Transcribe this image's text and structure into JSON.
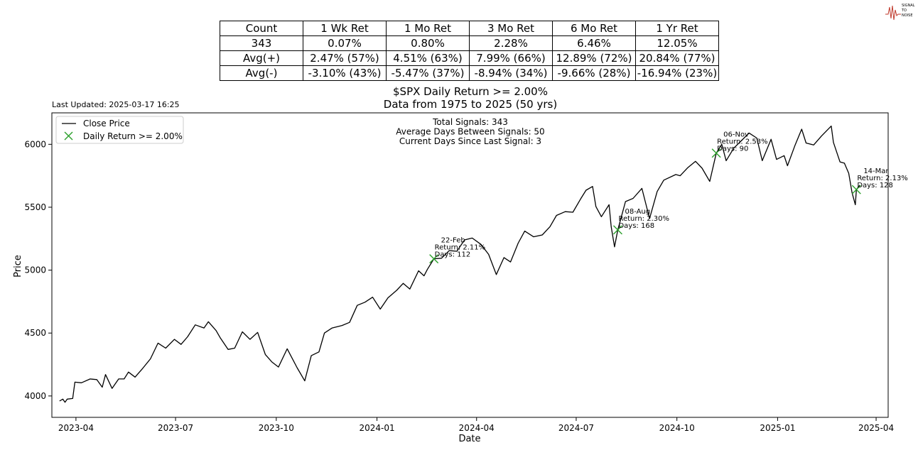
{
  "stats_table": {
    "rows": [
      [
        "Count",
        "1 Wk Ret",
        "1 Mo Ret",
        "3 Mo Ret",
        "6 Mo Ret",
        "1 Yr Ret"
      ],
      [
        "343",
        "0.07%",
        "0.80%",
        "2.28%",
        "6.46%",
        "12.05%"
      ],
      [
        "Avg(+)",
        "2.47% (57%)",
        "4.51% (63%)",
        "7.99% (66%)",
        "12.89% (72%)",
        "20.84% (77%)"
      ],
      [
        "Avg(-)",
        "-3.10% (43%)",
        "-5.47% (37%)",
        "-8.94% (34%)",
        "-9.66% (28%)",
        "-16.94% (23%)"
      ]
    ]
  },
  "logo": {
    "text_lines": [
      "SIGNAL",
      "TO",
      "NOISE"
    ],
    "color": "#c0392b"
  },
  "last_updated": "Last Updated: 2025-03-17 16:25",
  "colors": {
    "line": "#000000",
    "signal": "#2ca02c"
  },
  "chart_data": {
    "type": "line",
    "title": "$SPX Daily Return >= 2.00%",
    "subtitle": "Data from 1975 to 2025 (50 yrs)",
    "xlabel": "Date",
    "ylabel": "Price",
    "xlim": [
      "2023-03-10",
      "2025-04-12"
    ],
    "ylim": [
      3830,
      6250
    ],
    "yticks": [
      4000,
      4500,
      5000,
      5500,
      6000
    ],
    "xticks": [
      "2023-04",
      "2023-07",
      "2023-10",
      "2024-01",
      "2024-04",
      "2024-07",
      "2024-10",
      "2025-01",
      "2025-04"
    ],
    "stats_text": [
      "Total Signals: 343",
      "Average Days Between Signals: 50",
      "Current Days Since Last Signal: 3"
    ],
    "legend": {
      "placement": "top-left",
      "items": [
        "Close Price",
        "Daily Return >= 2.00%"
      ]
    },
    "series": [
      {
        "name": "Close Price",
        "points": [
          [
            "2023-03-17",
            3960
          ],
          [
            "2023-03-20",
            3975
          ],
          [
            "2023-03-22",
            3950
          ],
          [
            "2023-03-24",
            3975
          ],
          [
            "2023-03-29",
            3980
          ],
          [
            "2023-03-31",
            4110
          ],
          [
            "2023-04-06",
            4105
          ],
          [
            "2023-04-14",
            4135
          ],
          [
            "2023-04-20",
            4130
          ],
          [
            "2023-04-25",
            4070
          ],
          [
            "2023-04-28",
            4170
          ],
          [
            "2023-05-04",
            4060
          ],
          [
            "2023-05-10",
            4135
          ],
          [
            "2023-05-15",
            4135
          ],
          [
            "2023-05-19",
            4190
          ],
          [
            "2023-05-25",
            4150
          ],
          [
            "2023-06-01",
            4220
          ],
          [
            "2023-06-08",
            4295
          ],
          [
            "2023-06-15",
            4420
          ],
          [
            "2023-06-22",
            4380
          ],
          [
            "2023-06-30",
            4450
          ],
          [
            "2023-07-06",
            4410
          ],
          [
            "2023-07-12",
            4470
          ],
          [
            "2023-07-19",
            4565
          ],
          [
            "2023-07-27",
            4540
          ],
          [
            "2023-07-31",
            4590
          ],
          [
            "2023-08-07",
            4520
          ],
          [
            "2023-08-11",
            4460
          ],
          [
            "2023-08-18",
            4370
          ],
          [
            "2023-08-24",
            4380
          ],
          [
            "2023-08-31",
            4510
          ],
          [
            "2023-09-07",
            4450
          ],
          [
            "2023-09-14",
            4505
          ],
          [
            "2023-09-21",
            4330
          ],
          [
            "2023-09-27",
            4270
          ],
          [
            "2023-10-03",
            4230
          ],
          [
            "2023-10-11",
            4375
          ],
          [
            "2023-10-20",
            4225
          ],
          [
            "2023-10-27",
            4120
          ],
          [
            "2023-11-02",
            4320
          ],
          [
            "2023-11-09",
            4350
          ],
          [
            "2023-11-14",
            4500
          ],
          [
            "2023-11-21",
            4540
          ],
          [
            "2023-11-30",
            4560
          ],
          [
            "2023-12-07",
            4585
          ],
          [
            "2023-12-14",
            4720
          ],
          [
            "2023-12-21",
            4745
          ],
          [
            "2023-12-28",
            4785
          ],
          [
            "2024-01-04",
            4690
          ],
          [
            "2024-01-11",
            4780
          ],
          [
            "2024-01-19",
            4840
          ],
          [
            "2024-01-25",
            4895
          ],
          [
            "2024-01-31",
            4850
          ],
          [
            "2024-02-08",
            4995
          ],
          [
            "2024-02-13",
            4955
          ],
          [
            "2024-02-16",
            5005
          ],
          [
            "2024-02-22",
            5090
          ],
          [
            "2024-02-29",
            5095
          ],
          [
            "2024-03-07",
            5155
          ],
          [
            "2024-03-14",
            5150
          ],
          [
            "2024-03-21",
            5240
          ],
          [
            "2024-03-28",
            5255
          ],
          [
            "2024-04-05",
            5205
          ],
          [
            "2024-04-12",
            5125
          ],
          [
            "2024-04-19",
            4965
          ],
          [
            "2024-04-26",
            5100
          ],
          [
            "2024-05-02",
            5065
          ],
          [
            "2024-05-09",
            5215
          ],
          [
            "2024-05-15",
            5310
          ],
          [
            "2024-05-23",
            5265
          ],
          [
            "2024-05-31",
            5280
          ],
          [
            "2024-06-07",
            5345
          ],
          [
            "2024-06-13",
            5435
          ],
          [
            "2024-06-21",
            5465
          ],
          [
            "2024-06-28",
            5460
          ],
          [
            "2024-07-05",
            5565
          ],
          [
            "2024-07-10",
            5635
          ],
          [
            "2024-07-16",
            5665
          ],
          [
            "2024-07-19",
            5505
          ],
          [
            "2024-07-24",
            5425
          ],
          [
            "2024-07-31",
            5520
          ],
          [
            "2024-08-02",
            5345
          ],
          [
            "2024-08-05",
            5185
          ],
          [
            "2024-08-08",
            5320
          ],
          [
            "2024-08-15",
            5545
          ],
          [
            "2024-08-22",
            5570
          ],
          [
            "2024-08-30",
            5650
          ],
          [
            "2024-09-06",
            5410
          ],
          [
            "2024-09-13",
            5625
          ],
          [
            "2024-09-19",
            5715
          ],
          [
            "2024-09-30",
            5760
          ],
          [
            "2024-10-04",
            5750
          ],
          [
            "2024-10-11",
            5815
          ],
          [
            "2024-10-18",
            5865
          ],
          [
            "2024-10-24",
            5810
          ],
          [
            "2024-10-31",
            5705
          ],
          [
            "2024-11-06",
            5930
          ],
          [
            "2024-11-11",
            6000
          ],
          [
            "2024-11-15",
            5870
          ],
          [
            "2024-11-22",
            5970
          ],
          [
            "2024-11-29",
            6030
          ],
          [
            "2024-12-06",
            6090
          ],
          [
            "2024-12-13",
            6050
          ],
          [
            "2024-12-18",
            5870
          ],
          [
            "2024-12-26",
            6040
          ],
          [
            "2024-12-31",
            5880
          ],
          [
            "2025-01-07",
            5910
          ],
          [
            "2025-01-10",
            5830
          ],
          [
            "2025-01-17",
            5995
          ],
          [
            "2025-01-23",
            6120
          ],
          [
            "2025-01-27",
            6010
          ],
          [
            "2025-02-03",
            5995
          ],
          [
            "2025-02-10",
            6065
          ],
          [
            "2025-02-19",
            6145
          ],
          [
            "2025-02-21",
            6015
          ],
          [
            "2025-02-27",
            5860
          ],
          [
            "2025-03-03",
            5850
          ],
          [
            "2025-03-07",
            5770
          ],
          [
            "2025-03-10",
            5615
          ],
          [
            "2025-03-13",
            5520
          ],
          [
            "2025-03-14",
            5640
          ],
          [
            "2025-03-17",
            5675
          ]
        ]
      }
    ],
    "signals": [
      {
        "date": "2024-02-22",
        "price": 5090,
        "label": "22-Feb",
        "ret": "Return: 2.11%",
        "days": "Days: 112"
      },
      {
        "date": "2024-08-08",
        "price": 5320,
        "label": "08-Aug",
        "ret": "Return: 2.30%",
        "days": "Days: 168"
      },
      {
        "date": "2024-11-06",
        "price": 5930,
        "label": "06-Nov",
        "ret": "Return: 2.53%",
        "days": "Days: 90"
      },
      {
        "date": "2025-03-14",
        "price": 5640,
        "label": "14-Mar",
        "ret": "Return: 2.13%",
        "days": "Days: 128"
      }
    ]
  }
}
